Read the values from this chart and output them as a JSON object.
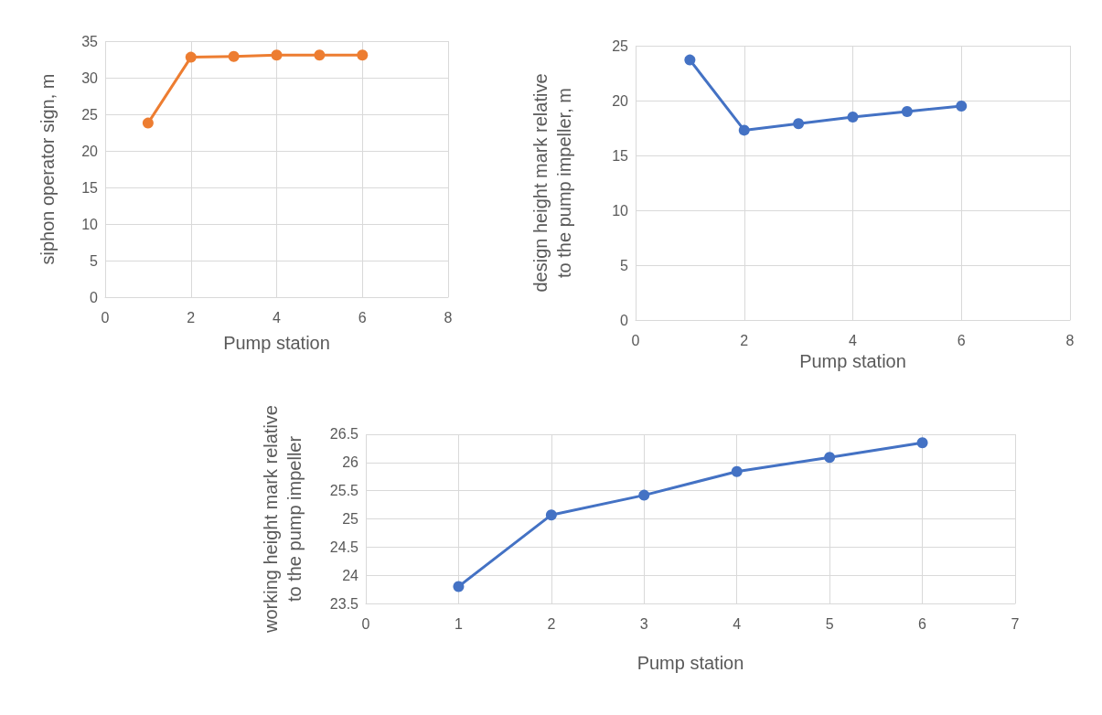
{
  "chart_data": [
    {
      "type": "line",
      "xlabel": "Pump station",
      "ylabel": "siphon operator sign, m",
      "x": [
        1,
        2,
        3,
        4,
        5,
        6
      ],
      "series": [
        {
          "color": "#ed7d31",
          "values": [
            23.8,
            32.8,
            32.9,
            33.1,
            33.1,
            33.1
          ]
        }
      ],
      "xlim": [
        0,
        8
      ],
      "xticks": [
        0,
        2,
        4,
        6,
        8
      ],
      "ylim": [
        0,
        35
      ],
      "yticks": [
        0,
        5,
        10,
        15,
        20,
        25,
        30,
        35
      ],
      "grid": true,
      "marker": "circle",
      "line_style": "solid"
    },
    {
      "type": "line",
      "xlabel": "Pump station",
      "ylabel": "design height mark relative to the pump impeller, m",
      "x": [
        1,
        2,
        3,
        4,
        5,
        6
      ],
      "series": [
        {
          "color": "#4472c4",
          "values": [
            23.7,
            17.3,
            17.9,
            18.5,
            19.0,
            19.5
          ]
        }
      ],
      "xlim": [
        0,
        8
      ],
      "xticks": [
        0,
        2,
        4,
        6,
        8
      ],
      "ylim": [
        0,
        25
      ],
      "yticks": [
        0,
        5,
        10,
        15,
        20,
        25
      ],
      "grid": true,
      "marker": "circle",
      "line_style": "solid"
    },
    {
      "type": "line",
      "xlabel": "Pump station",
      "ylabel": "working height mark relative to the pump impeller",
      "x": [
        1,
        2,
        3,
        4,
        5,
        6
      ],
      "series": [
        {
          "color": "#4472c4",
          "values": [
            23.8,
            25.07,
            25.42,
            25.84,
            26.09,
            26.35
          ]
        }
      ],
      "xlim": [
        0,
        7
      ],
      "xticks": [
        0,
        1,
        2,
        3,
        4,
        5,
        6,
        7
      ],
      "ylim": [
        23.5,
        26.5
      ],
      "yticks": [
        23.5,
        24,
        24.5,
        25,
        25.5,
        26,
        26.5
      ],
      "grid": true,
      "marker": "circle",
      "line_style": "solid"
    }
  ]
}
